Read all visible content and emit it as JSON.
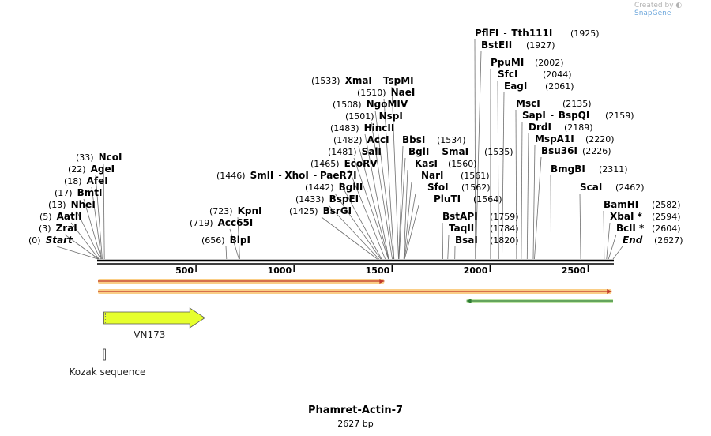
{
  "credit": {
    "created_by": "Created by",
    "brand": "SnapGene"
  },
  "plasmid": {
    "name": "Phamret-Actin-7",
    "length": "2627 bp",
    "total_bp": 2627
  },
  "ruler_ticks": [
    "500",
    "1000",
    "1500",
    "2000",
    "2500"
  ],
  "ruler_tick_values": [
    500,
    1000,
    1500,
    2000,
    2500
  ],
  "sites": [
    {
      "name": "NcoI",
      "pos": "(33)",
      "bp": 33
    },
    {
      "name": "AgeI",
      "pos": "(22)",
      "bp": 22
    },
    {
      "name": "AfeI",
      "pos": "(18)",
      "bp": 18
    },
    {
      "name": "BmtI",
      "pos": "(17)",
      "bp": 17
    },
    {
      "name": "NheI",
      "pos": "(13)",
      "bp": 13
    },
    {
      "name": "AatII",
      "pos": "(5)",
      "bp": 5
    },
    {
      "name": "ZraI",
      "pos": "(3)",
      "bp": 3
    },
    {
      "name": "Start",
      "pos": "(0)",
      "bp": 0
    },
    {
      "name": "BlpI",
      "pos": "(656)",
      "bp": 656
    },
    {
      "name": "Acc65I",
      "pos": "(719)",
      "bp": 719
    },
    {
      "name": "KpnI",
      "pos": "(723)",
      "bp": 723
    },
    {
      "name": "BsrGI",
      "pos": "(1425)",
      "bp": 1425
    },
    {
      "name": "BspEI",
      "pos": "(1433)",
      "bp": 1433
    },
    {
      "name": "BglII",
      "pos": "(1442)",
      "bp": 1442
    },
    {
      "name": "SmlI",
      "name2": "XhoI",
      "name3": "PaeR7I",
      "pos": "(1446)",
      "bp": 1446
    },
    {
      "name": "EcoRV",
      "pos": "(1465)",
      "bp": 1465
    },
    {
      "name": "SalI",
      "pos": "(1481)",
      "bp": 1481
    },
    {
      "name": "AccI",
      "pos": "(1482)",
      "bp": 1482
    },
    {
      "name": "HincII",
      "pos": "(1483)",
      "bp": 1483
    },
    {
      "name": "NspI",
      "pos": "(1501)",
      "bp": 1501
    },
    {
      "name": "NgoMIV",
      "pos": "(1508)",
      "bp": 1508
    },
    {
      "name": "NaeI",
      "pos": "(1510)",
      "bp": 1510
    },
    {
      "name": "XmaI",
      "name2": "TspMI",
      "pos": "(1533)",
      "bp": 1533
    },
    {
      "name": "BbsI",
      "pos": "(1534)",
      "bp": 1534
    },
    {
      "name": "BglI",
      "name2": "SmaI",
      "pos": "(1535)",
      "bp": 1535
    },
    {
      "name": "KasI",
      "pos": "(1560)",
      "bp": 1560
    },
    {
      "name": "NarI",
      "pos": "(1561)",
      "bp": 1561
    },
    {
      "name": "SfoI",
      "pos": "(1562)",
      "bp": 1562
    },
    {
      "name": "PluTI",
      "pos": "(1564)",
      "bp": 1564
    },
    {
      "name": "BstAPI",
      "pos": "(1759)",
      "bp": 1759
    },
    {
      "name": "TaqII",
      "pos": "(1784)",
      "bp": 1784
    },
    {
      "name": "BsaI",
      "pos": "(1820)",
      "bp": 1820
    },
    {
      "name": "PflFI",
      "name2": "Tth111I",
      "pos": "(1925)",
      "bp": 1925
    },
    {
      "name": "BstEII",
      "pos": "(1927)",
      "bp": 1927
    },
    {
      "name": "PpuMI",
      "pos": "(2002)",
      "bp": 2002
    },
    {
      "name": "SfcI",
      "pos": "(2044)",
      "bp": 2044
    },
    {
      "name": "EagI",
      "pos": "(2061)",
      "bp": 2061
    },
    {
      "name": "MscI",
      "pos": "(2135)",
      "bp": 2135
    },
    {
      "name": "SapI",
      "name2": "BspQI",
      "pos": "(2159)",
      "bp": 2159
    },
    {
      "name": "DrdI",
      "pos": "(2189)",
      "bp": 2189
    },
    {
      "name": "MspA1I",
      "pos": "(2220)",
      "bp": 2220
    },
    {
      "name": "Bsu36I",
      "pos": "(2226)",
      "bp": 2226
    },
    {
      "name": "BmgBI",
      "pos": "(2311)",
      "bp": 2311
    },
    {
      "name": "ScaI",
      "pos": "(2462)",
      "bp": 2462
    },
    {
      "name": "BamHI",
      "pos": "(2582)",
      "bp": 2582
    },
    {
      "name": "XbaI *",
      "pos": "(2594)",
      "bp": 2594
    },
    {
      "name": "BclI *",
      "pos": "(2604)",
      "bp": 2604
    },
    {
      "name": "End",
      "pos": "(2627)",
      "bp": 2627
    }
  ],
  "features": [
    {
      "name": "",
      "type": "primer-bar",
      "start_bp": 0,
      "end_bp": 1460,
      "direction": "forward",
      "color": "#f5a623",
      "core": "#c0392b"
    },
    {
      "name": "",
      "type": "primer-bar",
      "start_bp": 0,
      "end_bp": 2620,
      "direction": "forward",
      "color": "#f5a623",
      "core": "#c0392b"
    },
    {
      "name": "",
      "type": "primer-bar",
      "start_bp": 1880,
      "end_bp": 2627,
      "direction": "reverse",
      "color": "#8bd15c",
      "core": "#2e7d32"
    },
    {
      "name": "VN173",
      "type": "cds",
      "start_bp": 30,
      "end_bp": 545,
      "direction": "forward",
      "color": "#e6ff2e"
    },
    {
      "name": "Kozak sequence",
      "type": "misc",
      "start_bp": 24,
      "end_bp": 33,
      "color": "#ffffff"
    }
  ]
}
